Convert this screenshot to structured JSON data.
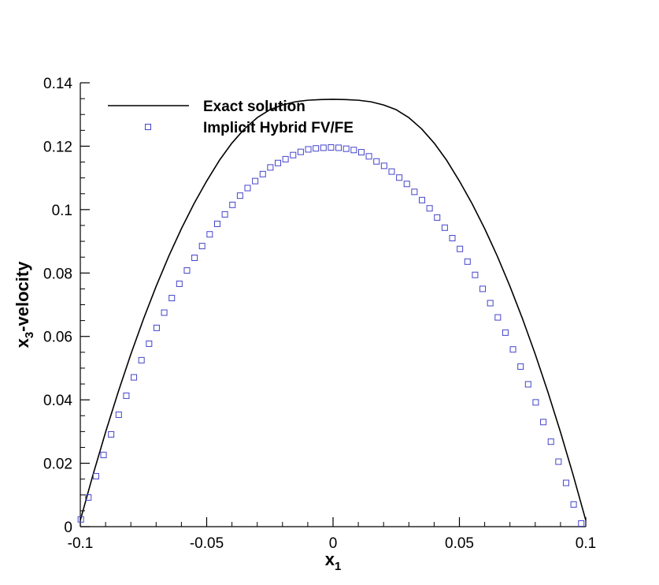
{
  "chart_data": {
    "type": "scatter",
    "xlabel": {
      "main": "x",
      "sub": "1"
    },
    "ylabel": {
      "main": "x",
      "sub": "3",
      "rest": "-velocity"
    },
    "xlim": [
      -0.1,
      0.1
    ],
    "ylim": [
      0,
      0.14
    ],
    "x_ticks": [
      {
        "value": -0.1,
        "label": "-0.1"
      },
      {
        "value": -0.05,
        "label": "-0.05"
      },
      {
        "value": 0,
        "label": "0"
      },
      {
        "value": 0.05,
        "label": "0.05"
      },
      {
        "value": 0.1,
        "label": "0.1"
      }
    ],
    "y_ticks": [
      {
        "value": 0,
        "label": "0"
      },
      {
        "value": 0.02,
        "label": "0.02"
      },
      {
        "value": 0.04,
        "label": "0.04"
      },
      {
        "value": 0.06,
        "label": "0.06"
      },
      {
        "value": 0.08,
        "label": "0.08"
      },
      {
        "value": 0.1,
        "label": "0.1"
      },
      {
        "value": 0.12,
        "label": "0.12"
      },
      {
        "value": 0.14,
        "label": "0.14"
      }
    ],
    "grid": false,
    "legend_position": "top-left",
    "series": [
      {
        "name": "Exact solution",
        "style": "line",
        "color": "#000000",
        "x": [
          -0.1,
          -0.095,
          -0.09,
          -0.085,
          -0.08,
          -0.075,
          -0.07,
          -0.065,
          -0.06,
          -0.055,
          -0.05,
          -0.045,
          -0.04,
          -0.035,
          -0.03,
          -0.025,
          -0.02,
          -0.015,
          -0.01,
          -0.005,
          0,
          0.005,
          0.01,
          0.015,
          0.02,
          0.025,
          0.03,
          0.035,
          0.04,
          0.045,
          0.05,
          0.055,
          0.06,
          0.065,
          0.07,
          0.075,
          0.08,
          0.085,
          0.09,
          0.095,
          0.1
        ],
        "y": [
          0.002,
          0.0163,
          0.0298,
          0.0425,
          0.0544,
          0.0655,
          0.0758,
          0.0853,
          0.094,
          0.1019,
          0.109,
          0.1155,
          0.121,
          0.1255,
          0.129,
          0.1315,
          0.133,
          0.134,
          0.1345,
          0.1347,
          0.1348,
          0.1347,
          0.1345,
          0.134,
          0.133,
          0.1315,
          0.129,
          0.1255,
          0.121,
          0.1155,
          0.109,
          0.1019,
          0.094,
          0.0853,
          0.0758,
          0.0655,
          0.0544,
          0.0425,
          0.0298,
          0.0163,
          0.002
        ]
      },
      {
        "name": "Implicit Hybrid FV/FE",
        "style": "marker-square",
        "color": "#4444cc",
        "x": [
          -0.0998,
          -0.0968,
          -0.0938,
          -0.0908,
          -0.0878,
          -0.0848,
          -0.0818,
          -0.0788,
          -0.0758,
          -0.0728,
          -0.0698,
          -0.0668,
          -0.0638,
          -0.0608,
          -0.0578,
          -0.0548,
          -0.0518,
          -0.0488,
          -0.0458,
          -0.0428,
          -0.0398,
          -0.0368,
          -0.0338,
          -0.0308,
          -0.0278,
          -0.0248,
          -0.0218,
          -0.0188,
          -0.0158,
          -0.0128,
          -0.0098,
          -0.0068,
          -0.0038,
          -0.0008,
          0.0022,
          0.0052,
          0.0082,
          0.0112,
          0.0142,
          0.0172,
          0.0202,
          0.0232,
          0.0262,
          0.0292,
          0.0322,
          0.0352,
          0.0382,
          0.0412,
          0.0442,
          0.0472,
          0.0502,
          0.0532,
          0.0562,
          0.0592,
          0.0622,
          0.0652,
          0.0682,
          0.0712,
          0.0742,
          0.0772,
          0.0802,
          0.0832,
          0.0862,
          0.0892,
          0.0922,
          0.0952,
          0.0982
        ],
        "y": [
          0.0023,
          0.0092,
          0.0159,
          0.0226,
          0.0291,
          0.0353,
          0.0413,
          0.0471,
          0.0525,
          0.0577,
          0.0627,
          0.0675,
          0.0721,
          0.0766,
          0.0808,
          0.0848,
          0.0885,
          0.0922,
          0.0955,
          0.0985,
          0.1015,
          0.1044,
          0.1068,
          0.109,
          0.1112,
          0.1133,
          0.1147,
          0.1159,
          0.1172,
          0.1182,
          0.119,
          0.1193,
          0.1195,
          0.1196,
          0.1195,
          0.1192,
          0.1188,
          0.1181,
          0.1168,
          0.1152,
          0.1138,
          0.112,
          0.1101,
          0.1081,
          0.1056,
          0.103,
          0.1004,
          0.0975,
          0.0943,
          0.091,
          0.0876,
          0.0836,
          0.0794,
          0.075,
          0.0705,
          0.066,
          0.0612,
          0.0559,
          0.0505,
          0.0449,
          0.0392,
          0.033,
          0.0268,
          0.0205,
          0.0138,
          0.007,
          0.001
        ]
      }
    ]
  }
}
